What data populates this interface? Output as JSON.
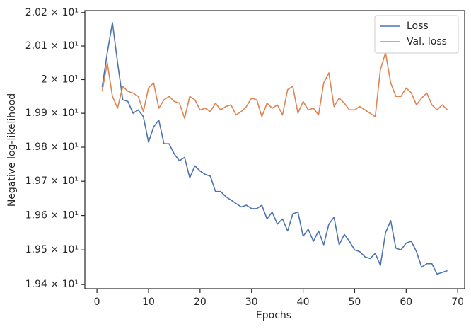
{
  "chart_data": {
    "type": "line",
    "xlabel": "Epochs",
    "ylabel": "Negative log-likelihood",
    "x": [
      1,
      2,
      3,
      4,
      5,
      6,
      7,
      8,
      9,
      10,
      11,
      12,
      13,
      14,
      15,
      16,
      17,
      18,
      19,
      20,
      21,
      22,
      23,
      24,
      25,
      26,
      27,
      28,
      29,
      30,
      31,
      32,
      33,
      34,
      35,
      36,
      37,
      38,
      39,
      40,
      41,
      42,
      43,
      44,
      45,
      46,
      47,
      48,
      49,
      50,
      51,
      52,
      53,
      54,
      55,
      56,
      57,
      58,
      59,
      60,
      61,
      62,
      63,
      64,
      65,
      66,
      67,
      68
    ],
    "series": [
      {
        "name": "Loss",
        "color": "#4c72b0",
        "values": [
          19.977,
          20.08,
          20.17,
          20.05,
          19.94,
          19.935,
          19.9,
          19.91,
          19.89,
          19.815,
          19.86,
          19.88,
          19.81,
          19.81,
          19.78,
          19.76,
          19.77,
          19.71,
          19.745,
          19.73,
          19.72,
          19.715,
          19.67,
          19.67,
          19.655,
          19.645,
          19.635,
          19.625,
          19.63,
          19.62,
          19.62,
          19.63,
          19.59,
          19.61,
          19.575,
          19.59,
          19.555,
          19.605,
          19.61,
          19.54,
          19.56,
          19.525,
          19.555,
          19.515,
          19.575,
          19.595,
          19.515,
          19.545,
          19.525,
          19.5,
          19.495,
          19.48,
          19.475,
          19.49,
          19.455,
          19.55,
          19.585,
          19.505,
          19.5,
          19.52,
          19.525,
          19.495,
          19.45,
          19.46,
          19.46,
          19.43,
          19.435,
          19.44
        ]
      },
      {
        "name": "Val. loss",
        "color": "#dd8452",
        "values": [
          19.965,
          20.05,
          19.95,
          19.915,
          19.98,
          19.965,
          19.96,
          19.95,
          19.905,
          19.975,
          19.99,
          19.915,
          19.94,
          19.95,
          19.935,
          19.93,
          19.885,
          19.95,
          19.94,
          19.91,
          19.915,
          19.905,
          19.93,
          19.91,
          19.92,
          19.925,
          19.895,
          19.905,
          19.92,
          19.945,
          19.94,
          19.89,
          19.93,
          19.915,
          19.925,
          19.895,
          19.97,
          19.98,
          19.9,
          19.935,
          19.91,
          19.915,
          19.895,
          19.99,
          20.02,
          19.92,
          19.945,
          19.93,
          19.91,
          19.91,
          19.92,
          19.91,
          19.9,
          19.89,
          20.03,
          20.08,
          19.99,
          19.95,
          19.95,
          19.975,
          19.96,
          19.925,
          19.945,
          19.96,
          19.925,
          19.91,
          19.925,
          19.91
        ]
      }
    ],
    "xlim": [
      -2.35,
      71.35
    ],
    "xticks": [
      0,
      10,
      20,
      30,
      40,
      50,
      60,
      70
    ],
    "ylim": [
      19.388,
      20.206
    ],
    "yscale": "log",
    "yticks": [
      {
        "value": 19.4,
        "label": "1.94 × 10¹"
      },
      {
        "value": 19.5,
        "label": "1.95 × 10¹"
      },
      {
        "value": 19.6,
        "label": "1.96 × 10¹"
      },
      {
        "value": 19.7,
        "label": "1.97 × 10¹"
      },
      {
        "value": 19.8,
        "label": "1.98 × 10¹"
      },
      {
        "value": 19.9,
        "label": "1.99 × 10¹"
      },
      {
        "value": 20.0,
        "label": "2 × 10¹"
      },
      {
        "value": 20.1,
        "label": "2.01 × 10¹"
      },
      {
        "value": 20.2,
        "label": "2.02 × 10¹"
      }
    ],
    "legend": "upper right"
  }
}
